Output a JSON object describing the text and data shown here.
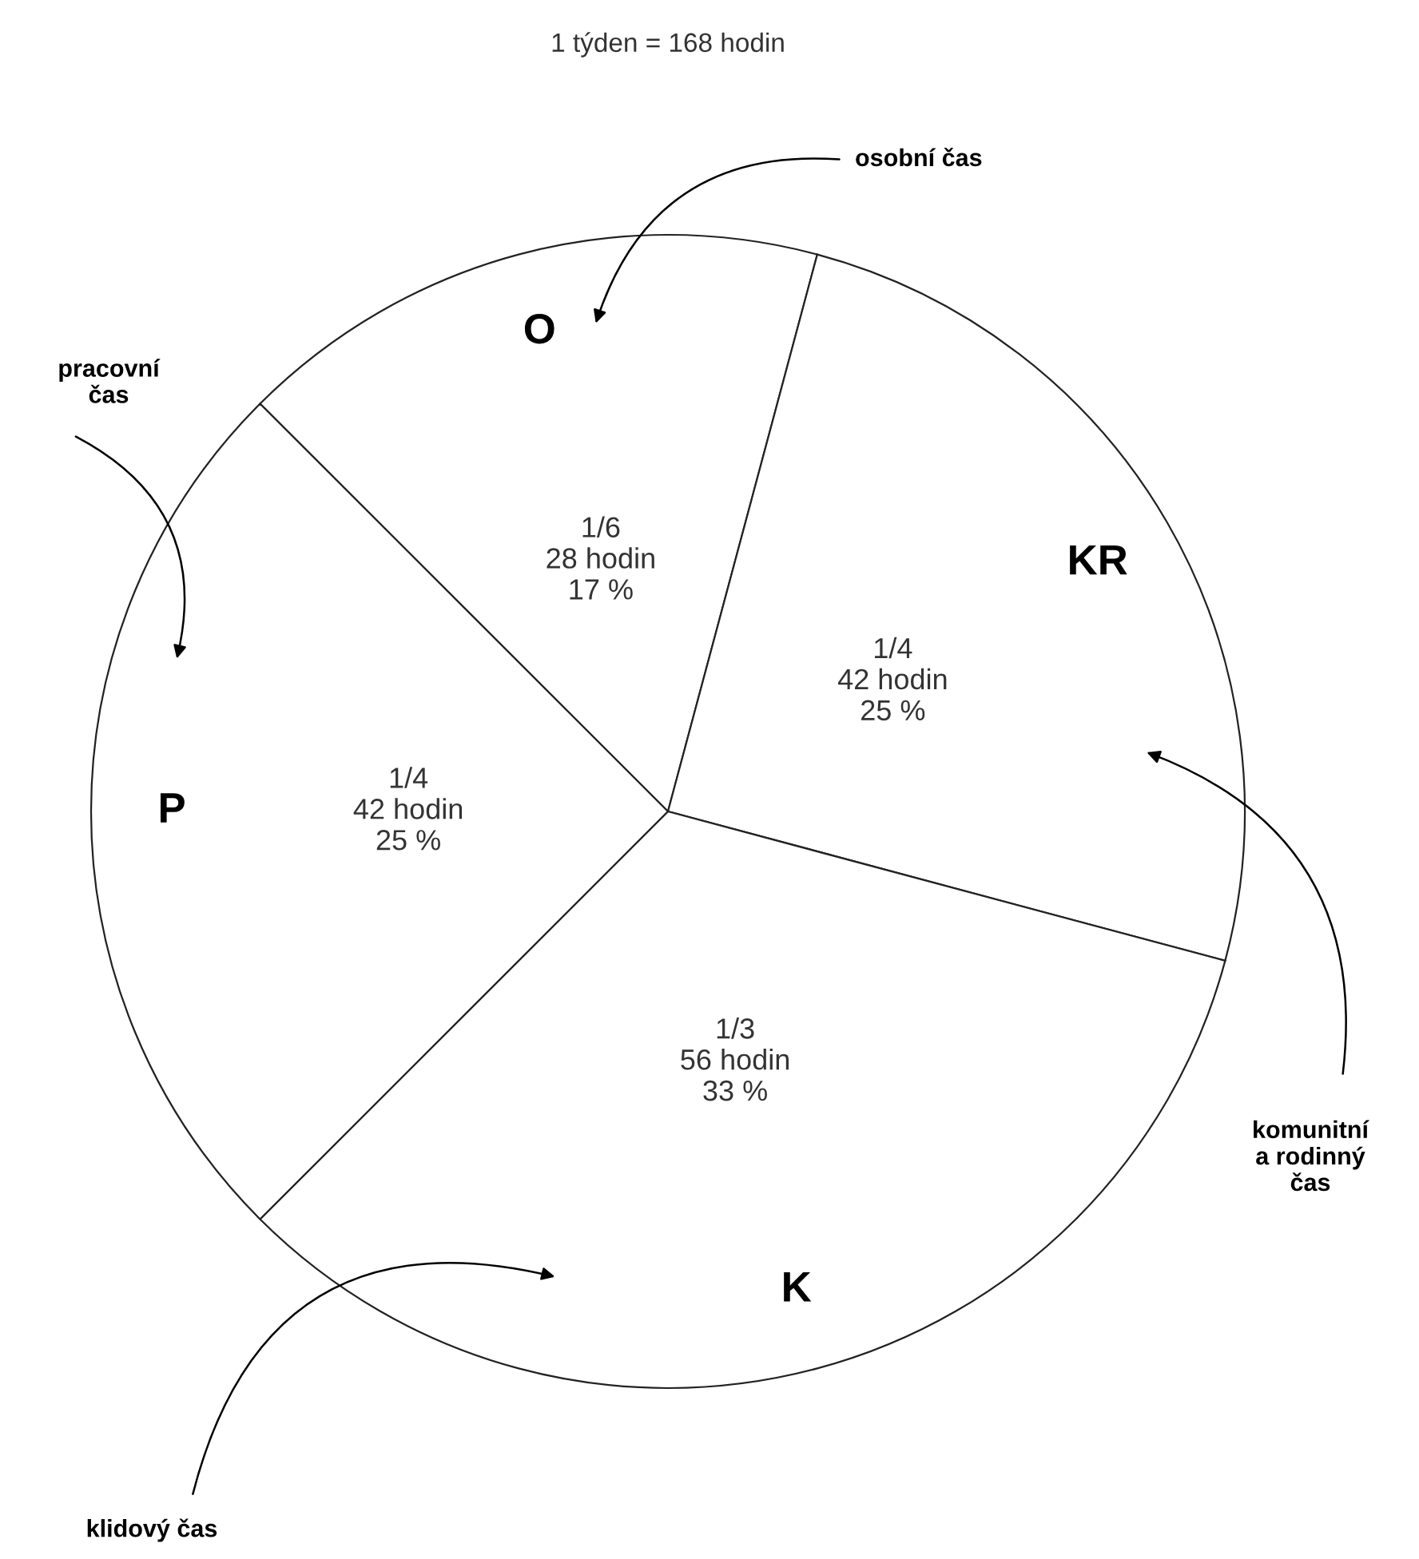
{
  "chart_data": {
    "type": "pie",
    "title": "1 týden = 168 hodin",
    "categories": [
      "O",
      "KR",
      "K",
      "P"
    ],
    "values": [
      28,
      42,
      56,
      42
    ],
    "colors": [
      "#ffffff",
      "#ffffff",
      "#ffffff",
      "#ffffff"
    ],
    "value_labels": [
      "1/6\n28 hodin\n17 %",
      "1/4\n42 hodin\n25 %",
      "1/3\n56 hodin\n33 %",
      "1/4\n42 hodin\n25 %"
    ],
    "annotations": [
      "osobní čas",
      "pracovní\nčas",
      "klidový čas",
      "komunitní\na rodinný\nčas"
    ]
  }
}
